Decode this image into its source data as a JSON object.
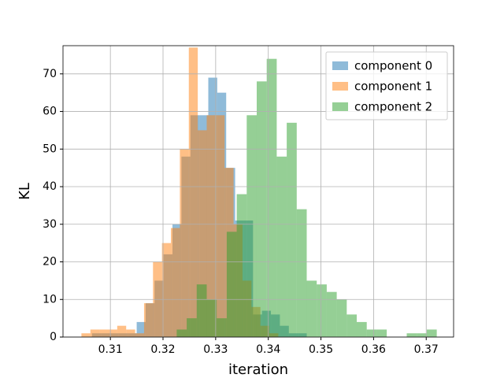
{
  "chart_data": {
    "type": "histogram",
    "xlabel": "iteration",
    "ylabel": "KL",
    "xlim": [
      0.301,
      0.3752
    ],
    "ylim": [
      0,
      77.5
    ],
    "xticks": [
      0.31,
      0.32,
      0.33,
      0.34,
      0.35,
      0.36,
      0.37
    ],
    "yticks": [
      0,
      10,
      20,
      30,
      40,
      50,
      60,
      70
    ],
    "grid": true,
    "legend": "upper right",
    "alpha": 0.5,
    "series": [
      {
        "name": "component 0",
        "color": "#1f77b4",
        "bins": [
          0.3065,
          0.3082,
          0.3099,
          0.3116,
          0.3133,
          0.315,
          0.3167,
          0.3184,
          0.3201,
          0.3218,
          0.3235,
          0.3252,
          0.3269,
          0.3286,
          0.3303,
          0.332,
          0.3337,
          0.3354,
          0.3371,
          0.3388,
          0.3405,
          0.3422,
          0.3439,
          0.3456,
          0.3473
        ],
        "values": [
          1,
          1,
          1,
          1,
          1,
          4,
          9,
          15,
          22,
          30,
          48,
          59,
          59,
          69,
          65,
          45,
          31,
          31,
          6,
          7,
          6,
          3,
          1,
          1
        ]
      },
      {
        "name": "component 1",
        "color": "#ff7f0e",
        "bins": [
          0.3045,
          0.3062,
          0.3079,
          0.3096,
          0.3113,
          0.313,
          0.3147,
          0.3164,
          0.3181,
          0.3198,
          0.3215,
          0.3232,
          0.3249,
          0.3266,
          0.3283,
          0.33,
          0.3317,
          0.3334,
          0.3351,
          0.3368,
          0.3385,
          0.3402,
          0.3419
        ],
        "values": [
          1,
          2,
          2,
          2,
          3,
          2,
          1,
          9,
          20,
          25,
          29,
          50,
          77,
          55,
          59,
          59,
          45,
          30,
          15,
          8,
          3,
          1
        ]
      },
      {
        "name": "component 2",
        "color": "#2ca02c",
        "bins": [
          0.3226,
          0.3245,
          0.3264,
          0.3283,
          0.3302,
          0.3321,
          0.334,
          0.3359,
          0.3378,
          0.3397,
          0.3416,
          0.3435,
          0.3454,
          0.3473,
          0.3492,
          0.3511,
          0.353,
          0.3549,
          0.3568,
          0.3587,
          0.3606,
          0.3625,
          0.3644,
          0.3663,
          0.3682,
          0.3701,
          0.372
        ],
        "values": [
          2,
          5,
          14,
          10,
          5,
          28,
          38,
          59,
          68,
          74,
          48,
          57,
          34,
          15,
          14,
          12,
          10,
          6,
          4,
          2,
          2,
          0,
          0,
          1,
          1,
          2
        ]
      }
    ]
  }
}
